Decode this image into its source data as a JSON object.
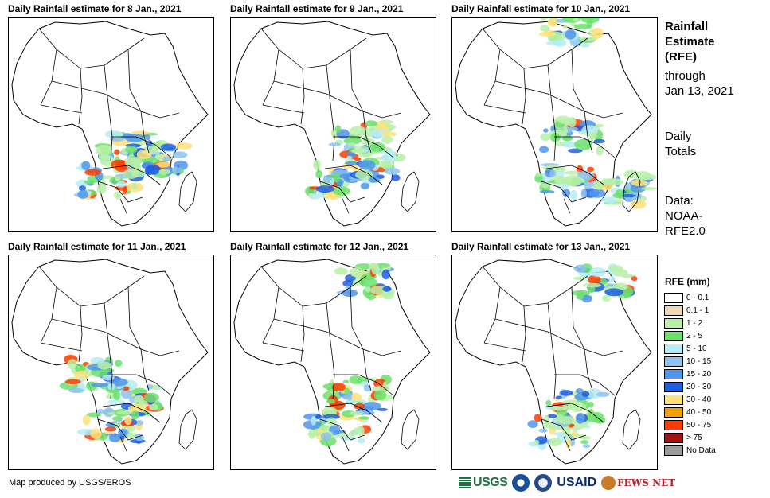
{
  "panels": [
    {
      "title": "Daily Rainfall estimate for 8 Jan., 2021"
    },
    {
      "title": "Daily Rainfall estimate for 9 Jan., 2021"
    },
    {
      "title": "Daily Rainfall estimate for 10 Jan., 2021"
    },
    {
      "title": "Daily Rainfall estimate for 11 Jan., 2021"
    },
    {
      "title": "Daily Rainfall estimate for 12 Jan., 2021"
    },
    {
      "title": "Daily Rainfall estimate for 13 Jan., 2021"
    }
  ],
  "sidebar": {
    "title_lines": [
      "Rainfall",
      "Estimate",
      "(RFE)"
    ],
    "through_lines": [
      "through",
      "Jan 13, 2021"
    ],
    "totals_lines": [
      "Daily",
      "Totals"
    ],
    "data_lines": [
      "Data:",
      "NOAA-",
      "RFE2.0"
    ]
  },
  "legend": {
    "title": "RFE (mm)",
    "items": [
      {
        "label": "0 - 0.1",
        "color": "#ffffff"
      },
      {
        "label": "0.1 - 1",
        "color": "#efd9b4"
      },
      {
        "label": "1 - 2",
        "color": "#b8f0a8"
      },
      {
        "label": "2 - 5",
        "color": "#6be06b"
      },
      {
        "label": "5 - 10",
        "color": "#b6ecf5"
      },
      {
        "label": "10 - 15",
        "color": "#8ec3f0"
      },
      {
        "label": "15 - 20",
        "color": "#4f97ec"
      },
      {
        "label": "20 - 30",
        "color": "#1f5ee0"
      },
      {
        "label": "30 - 40",
        "color": "#ffe27a"
      },
      {
        "label": "40 - 50",
        "color": "#f5a000"
      },
      {
        "label": "50 - 75",
        "color": "#ff3c00"
      },
      {
        "label": "> 75",
        "color": "#a51414"
      },
      {
        "label": "No Data",
        "color": "#9a9a9a"
      }
    ]
  },
  "footer": {
    "credit": "Map produced by USGS/EROS",
    "logos": [
      "USGS",
      "USAID",
      "FEWS NET"
    ]
  }
}
